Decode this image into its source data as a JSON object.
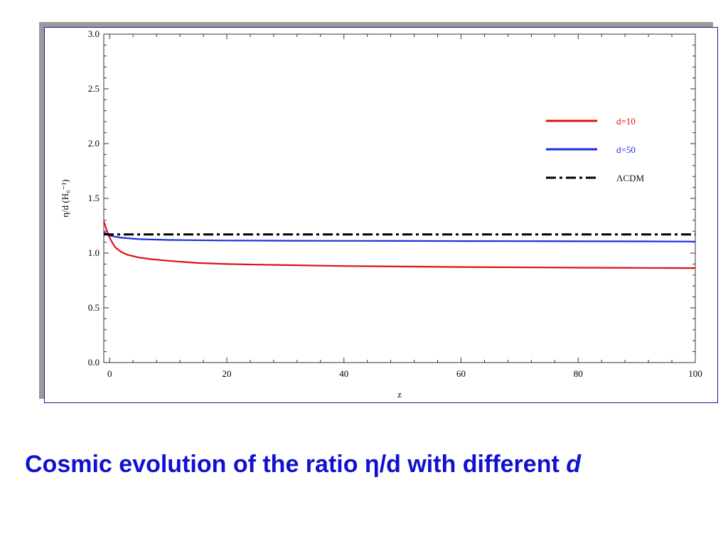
{
  "caption": {
    "text": "Cosmic evolution of the ratio η/d with different ",
    "emphasis": "d",
    "color": "#1010d0"
  },
  "chart_data": {
    "type": "line",
    "title": "",
    "xlabel": "z",
    "ylabel": "η/d  (H₀⁻¹)",
    "xlim": [
      -1,
      100
    ],
    "ylim": [
      0,
      3.0
    ],
    "x_ticks": [
      0,
      20,
      40,
      60,
      80,
      100
    ],
    "y_ticks": [
      0.0,
      0.5,
      1.0,
      1.5,
      2.0,
      2.5,
      3.0
    ],
    "y_tick_labels": [
      "0.0",
      "0.5",
      "1.0",
      "1.5",
      "2.0",
      "2.5",
      "3.0"
    ],
    "grid": false,
    "legend_position": "top-right",
    "series": [
      {
        "name": "d=10",
        "color": "#e01010",
        "dash": "solid",
        "x": [
          -1,
          -0.5,
          0,
          0.5,
          1,
          2,
          3,
          5,
          7,
          10,
          15,
          20,
          30,
          40,
          50,
          60,
          70,
          80,
          90,
          100
        ],
        "y": [
          1.29,
          1.21,
          1.14,
          1.09,
          1.05,
          1.01,
          0.985,
          0.96,
          0.945,
          0.93,
          0.91,
          0.9,
          0.89,
          0.882,
          0.877,
          0.873,
          0.87,
          0.867,
          0.865,
          0.863
        ]
      },
      {
        "name": "d=50",
        "color": "#1a2ee0",
        "dash": "solid",
        "x": [
          -1,
          0,
          2,
          5,
          10,
          20,
          30,
          40,
          50,
          60,
          70,
          80,
          90,
          100
        ],
        "y": [
          1.19,
          1.16,
          1.14,
          1.127,
          1.12,
          1.115,
          1.113,
          1.112,
          1.111,
          1.11,
          1.109,
          1.108,
          1.107,
          1.105
        ]
      },
      {
        "name": "ΛCDM",
        "color": "#000000",
        "dash": "dashdot",
        "x": [
          -1,
          100
        ],
        "y": [
          1.17,
          1.17
        ]
      }
    ]
  }
}
